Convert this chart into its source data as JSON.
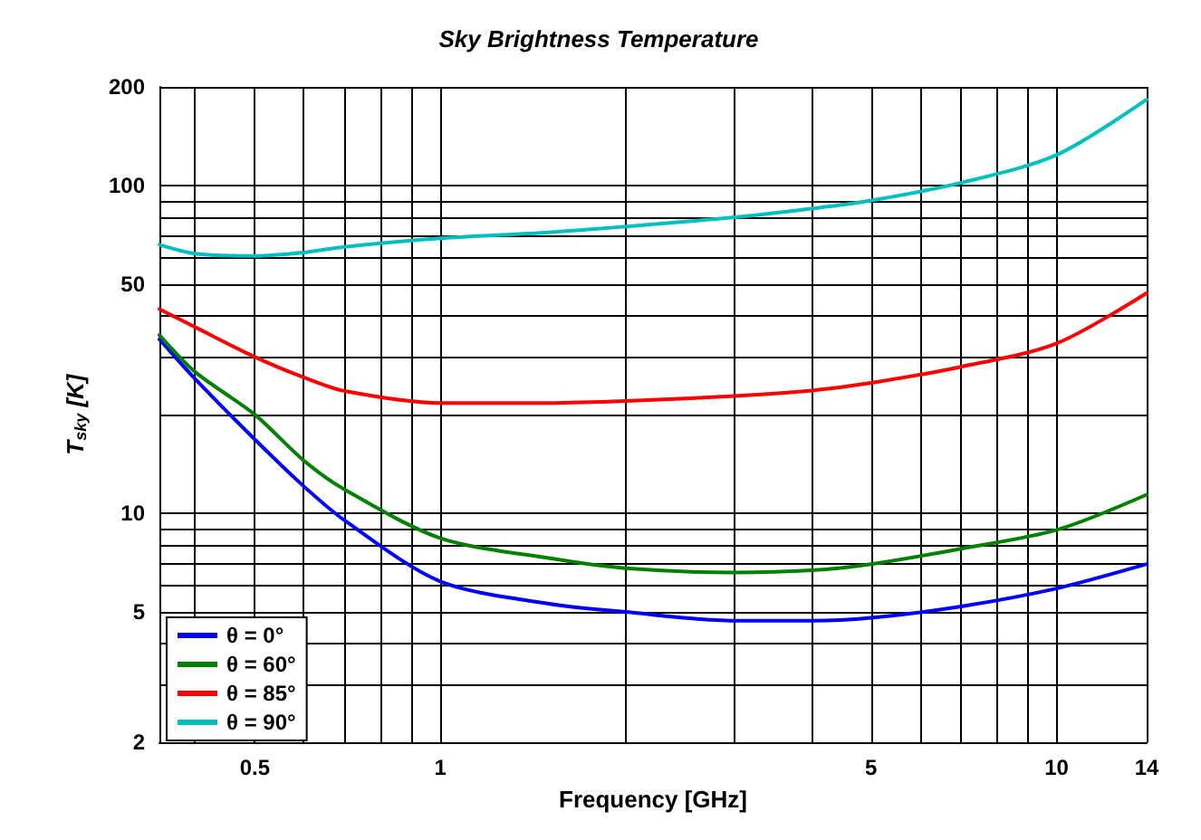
{
  "chart_data": {
    "type": "line",
    "title": "Sky Brightness Temperature",
    "xlabel": "Frequency [GHz]",
    "ylabel": "T$_{sky}$ [K]",
    "log": "xy",
    "grid": true,
    "legend": "bottom left",
    "marker": "none",
    "line_style": "solid",
    "xlim": [
      0.35,
      14
    ],
    "ylim": [
      2,
      200
    ],
    "xticks": [
      {
        "value": 0.4,
        "label": null
      },
      0.5,
      {
        "value": 0.6,
        "label": null
      },
      {
        "value": 0.7,
        "label": null
      },
      {
        "value": 0.8,
        "label": null
      },
      {
        "value": 0.9,
        "label": null
      },
      1,
      {
        "value": 2,
        "label": null
      },
      {
        "value": 3,
        "label": null
      },
      {
        "value": 4,
        "label": null
      },
      5,
      {
        "value": 6,
        "label": null
      },
      {
        "value": 7,
        "label": null
      },
      {
        "value": 8,
        "label": null
      },
      {
        "value": 9,
        "label": null
      },
      10,
      14
    ],
    "yticks": [
      2,
      {
        "value": 3,
        "label": null
      },
      {
        "value": 4,
        "label": null
      },
      5,
      {
        "value": 6,
        "label": null
      },
      {
        "value": 7,
        "label": null
      },
      {
        "value": 8,
        "label": null
      },
      {
        "value": 9,
        "label": null
      },
      10,
      {
        "value": 20,
        "label": null
      },
      {
        "value": 30,
        "label": null
      },
      {
        "value": 40,
        "label": null
      },
      50,
      {
        "value": 60,
        "label": null
      },
      {
        "value": 70,
        "label": null
      },
      {
        "value": 80,
        "label": null
      },
      {
        "value": 90,
        "label": null
      },
      100,
      200
    ],
    "x": [
      0.35,
      0.4,
      0.5,
      0.6,
      0.7,
      1,
      1.5,
      2,
      3,
      4,
      5,
      7,
      10,
      14
    ],
    "series": [
      {
        "name": "θ = 0°",
        "color": "#0000ff",
        "values": [
          34,
          25.7,
          16.8,
          12.1,
          9.5,
          6.2,
          5.3,
          5.0,
          4.7,
          4.7,
          4.8,
          5.2,
          5.9,
          7
        ]
      },
      {
        "name": "θ = 60°",
        "color": "#008000",
        "values": [
          35,
          27,
          20,
          14.5,
          11.8,
          8.4,
          7.3,
          6.8,
          6.6,
          6.7,
          7.0,
          7.8,
          8.9,
          11.4
        ]
      },
      {
        "name": "θ = 85°",
        "color": "#ff0000",
        "values": [
          42,
          37,
          30,
          26,
          23.6,
          21.7,
          21.7,
          22,
          22.8,
          23.7,
          25,
          28,
          33,
          47
        ]
      },
      {
        "name": "θ = 90°",
        "color": "#00bfbf",
        "values": [
          66,
          62,
          61,
          62.5,
          65,
          69,
          72,
          75,
          80,
          85,
          90,
          102,
          124,
          183
        ]
      }
    ]
  }
}
